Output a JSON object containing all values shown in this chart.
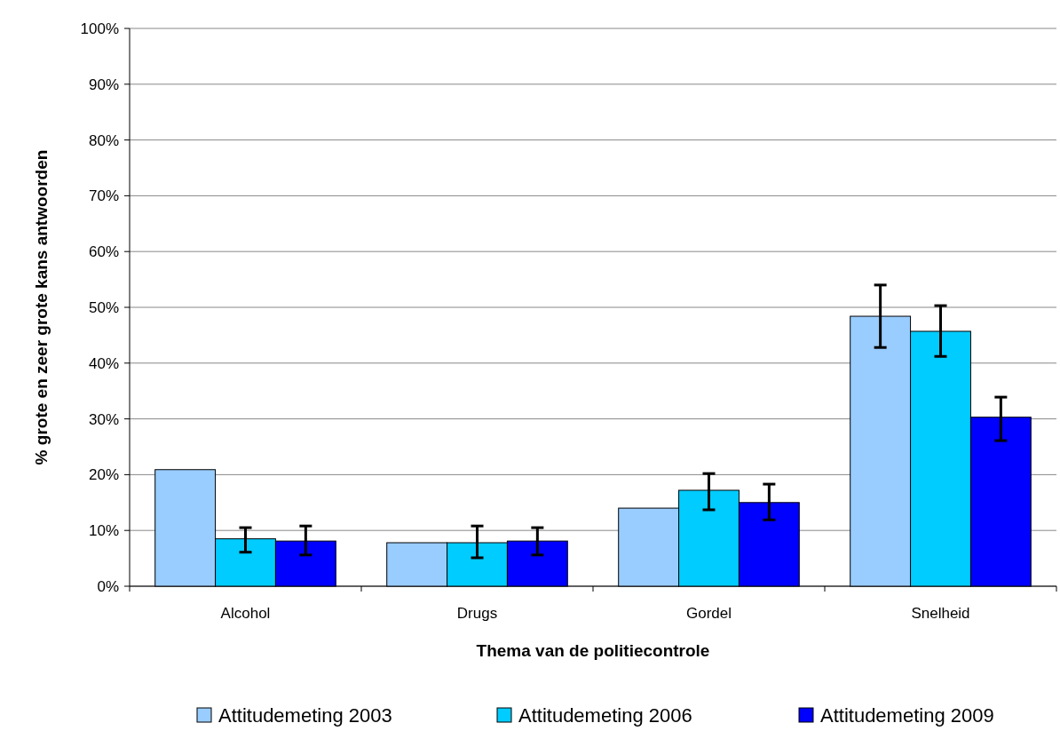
{
  "chart_data": {
    "type": "bar",
    "xlabel": "Thema van de politiecontrole",
    "ylabel": "% grote en zeer grote kans antwoorden",
    "categories": [
      "Alcohol",
      "Drugs",
      "Gordel",
      "Snelheid"
    ],
    "series": [
      {
        "name": "Attitudemeting 2003",
        "color": "#99ccff",
        "values": [
          20.9,
          7.8,
          14.0,
          48.4
        ],
        "errors": [
          null,
          null,
          null,
          [
            42.8,
            54.0
          ]
        ]
      },
      {
        "name": "Attitudemeting 2006",
        "color": "#00ccff",
        "values": [
          8.5,
          7.8,
          17.2,
          45.7
        ],
        "errors": [
          [
            6.1,
            10.5
          ],
          [
            5.1,
            10.8
          ],
          [
            13.7,
            20.2
          ],
          [
            41.2,
            50.3
          ]
        ]
      },
      {
        "name": "Attitudemeting 2009",
        "color": "#0000ff",
        "values": [
          8.1,
          8.1,
          15.0,
          30.3
        ],
        "errors": [
          [
            5.6,
            10.8
          ],
          [
            5.6,
            10.5
          ],
          [
            11.9,
            18.3
          ],
          [
            26.1,
            33.9
          ]
        ]
      }
    ],
    "ylim": [
      0,
      100
    ],
    "yticks": [
      {
        "value": 0,
        "label": "0%"
      },
      {
        "value": 10,
        "label": "10%"
      },
      {
        "value": 20,
        "label": "20%"
      },
      {
        "value": 30,
        "label": "30%"
      },
      {
        "value": 40,
        "label": "40%"
      },
      {
        "value": 50,
        "label": "50%"
      },
      {
        "value": 60,
        "label": "60%"
      },
      {
        "value": 70,
        "label": "70%"
      },
      {
        "value": 80,
        "label": "80%"
      },
      {
        "value": 90,
        "label": "90%"
      },
      {
        "value": 100,
        "label": "100%"
      }
    ],
    "grid": "y",
    "legend": "bottom"
  }
}
